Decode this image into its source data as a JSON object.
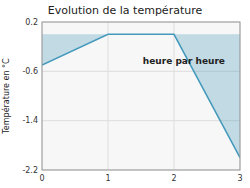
{
  "chart_data": {
    "type": "area",
    "title": "Evolution de la température",
    "ylabel": "Température en °C",
    "x": [
      0,
      1,
      2,
      3
    ],
    "values": [
      -0.5,
      0.0,
      0.0,
      -2.0
    ],
    "baseline": 0.0,
    "color": "#4499bb",
    "xlim": [
      0,
      3
    ],
    "ylim": [
      -2.2,
      0.2
    ],
    "xticks": [
      0,
      1,
      2,
      3
    ],
    "yticks": [
      0.2,
      -0.6,
      -1.4,
      -2.2
    ],
    "grid": true,
    "annotations": [
      {
        "text": "heure par heure",
        "x": 2.15,
        "y": -0.38
      }
    ]
  }
}
